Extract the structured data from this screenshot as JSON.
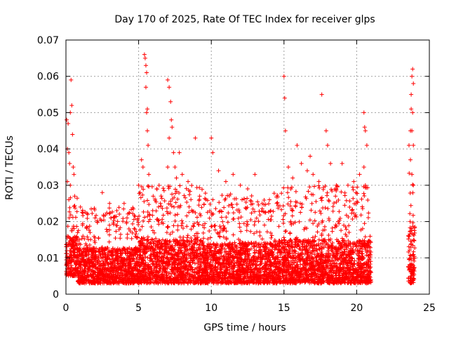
{
  "chart_data": {
    "type": "scatter",
    "title": "Day 170 of 2025, Rate Of TEC Index for receiver glps",
    "xlabel": "GPS time / hours",
    "ylabel": "ROTI / TECUs",
    "xlim": [
      0,
      25
    ],
    "ylim": [
      0,
      0.07
    ],
    "xticks": [
      "0",
      "5",
      "10",
      "15",
      "20",
      "25"
    ],
    "yticks": [
      "0",
      "0.01",
      "0.02",
      "0.03",
      "0.04",
      "0.05",
      "0.06",
      "0.07"
    ],
    "grid": true,
    "marker": "+",
    "color": "#ff0000",
    "series": [
      {
        "values_note": "",
        "points": [
          [
            0.05,
            0.048
          ],
          [
            0.1,
            0.04
          ],
          [
            0.15,
            0.047
          ],
          [
            0.2,
            0.039
          ],
          [
            0.25,
            0.036
          ],
          [
            0.3,
            0.05
          ],
          [
            0.35,
            0.059
          ],
          [
            0.4,
            0.052
          ],
          [
            0.45,
            0.044
          ],
          [
            0.5,
            0.035
          ],
          [
            0.55,
            0.033
          ],
          [
            0.6,
            0.027
          ],
          [
            0.3,
            0.03
          ],
          [
            0.2,
            0.026
          ],
          [
            0.1,
            0.031
          ],
          [
            1.0,
            0.024
          ],
          [
            1.5,
            0.022
          ],
          [
            2.0,
            0.021
          ],
          [
            2.5,
            0.028
          ],
          [
            3.0,
            0.025
          ],
          [
            3.5,
            0.023
          ],
          [
            4.0,
            0.025
          ],
          [
            4.2,
            0.021
          ],
          [
            5.0,
            0.03
          ],
          [
            5.2,
            0.037
          ],
          [
            5.4,
            0.066
          ],
          [
            5.45,
            0.065
          ],
          [
            5.5,
            0.063
          ],
          [
            5.55,
            0.061
          ],
          [
            5.5,
            0.057
          ],
          [
            5.6,
            0.051
          ],
          [
            5.55,
            0.05
          ],
          [
            5.6,
            0.045
          ],
          [
            5.65,
            0.041
          ],
          [
            5.7,
            0.033
          ],
          [
            5.3,
            0.035
          ],
          [
            5.1,
            0.028
          ],
          [
            6.0,
            0.027
          ],
          [
            6.5,
            0.025
          ],
          [
            7.0,
            0.059
          ],
          [
            7.1,
            0.057
          ],
          [
            7.2,
            0.053
          ],
          [
            7.25,
            0.048
          ],
          [
            7.3,
            0.046
          ],
          [
            7.1,
            0.043
          ],
          [
            7.4,
            0.039
          ],
          [
            7.5,
            0.035
          ],
          [
            7.6,
            0.032
          ],
          [
            7.0,
            0.035
          ],
          [
            7.8,
            0.039
          ],
          [
            8.0,
            0.033
          ],
          [
            8.4,
            0.031
          ],
          [
            8.9,
            0.043
          ],
          [
            9.2,
            0.027
          ],
          [
            10.0,
            0.043
          ],
          [
            10.1,
            0.039
          ],
          [
            10.5,
            0.034
          ],
          [
            11.0,
            0.031
          ],
          [
            11.5,
            0.033
          ],
          [
            12.0,
            0.03
          ],
          [
            12.5,
            0.029
          ],
          [
            13.0,
            0.033
          ],
          [
            13.5,
            0.025
          ],
          [
            14.0,
            0.026
          ],
          [
            14.5,
            0.025
          ],
          [
            15.0,
            0.06
          ],
          [
            15.05,
            0.054
          ],
          [
            15.1,
            0.045
          ],
          [
            15.3,
            0.035
          ],
          [
            15.6,
            0.032
          ],
          [
            15.9,
            0.041
          ],
          [
            16.2,
            0.036
          ],
          [
            16.6,
            0.034
          ],
          [
            16.8,
            0.038
          ],
          [
            17.0,
            0.033
          ],
          [
            17.4,
            0.031
          ],
          [
            17.6,
            0.055
          ],
          [
            17.9,
            0.045
          ],
          [
            18.0,
            0.041
          ],
          [
            18.2,
            0.036
          ],
          [
            18.6,
            0.03
          ],
          [
            19.0,
            0.036
          ],
          [
            19.4,
            0.03
          ],
          [
            19.8,
            0.031
          ],
          [
            20.2,
            0.033
          ],
          [
            20.5,
            0.05
          ],
          [
            20.55,
            0.046
          ],
          [
            20.6,
            0.045
          ],
          [
            20.7,
            0.041
          ],
          [
            20.5,
            0.035
          ],
          [
            20.6,
            0.03
          ],
          [
            23.6,
            0.041
          ],
          [
            23.7,
            0.045
          ],
          [
            23.75,
            0.051
          ],
          [
            23.8,
            0.06
          ],
          [
            23.85,
            0.062
          ],
          [
            23.9,
            0.058
          ],
          [
            23.75,
            0.055
          ],
          [
            23.85,
            0.05
          ],
          [
            23.8,
            0.045
          ],
          [
            23.9,
            0.041
          ],
          [
            23.7,
            0.037
          ],
          [
            23.8,
            0.033
          ],
          [
            23.9,
            0.03
          ]
        ],
        "bands": [
          [
            0.0,
            0.8,
            0.005,
            0.02,
            0.028
          ],
          [
            0.8,
            4.8,
            0.003,
            0.016,
            0.024
          ],
          [
            4.8,
            6.2,
            0.003,
            0.02,
            0.03
          ],
          [
            6.2,
            9.5,
            0.003,
            0.019,
            0.03
          ],
          [
            9.5,
            14.6,
            0.003,
            0.018,
            0.028
          ],
          [
            14.6,
            17.5,
            0.003,
            0.019,
            0.03
          ],
          [
            17.5,
            21.0,
            0.003,
            0.019,
            0.03
          ],
          [
            23.55,
            24.0,
            0.003,
            0.024,
            0.034
          ]
        ]
      }
    ]
  }
}
